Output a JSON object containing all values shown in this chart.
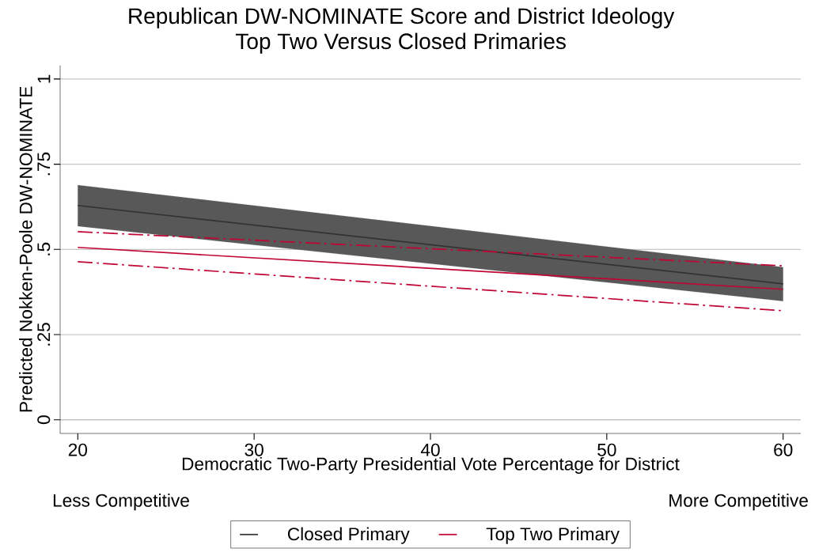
{
  "chart_data": {
    "type": "line",
    "title": "Republican DW-NOMINATE Score and District Ideology",
    "subtitle": "Top Two Versus Closed Primaries",
    "xlabel": "Democratic Two-Party Presidential Vote Percentage for District",
    "ylabel": "Predicted Nokken-Poole DW-NOMINATE",
    "annotations": [
      "Less Competitive",
      "More Competitive"
    ],
    "x": [
      20,
      60
    ],
    "xlim": [
      19,
      61
    ],
    "ylim": [
      -0.04,
      1.04
    ],
    "xticks": [
      20,
      30,
      40,
      50,
      60
    ],
    "yticks": [
      0,
      {
        "value": 0.25,
        "label": ".25"
      },
      {
        "value": 0.5,
        "label": ".5"
      },
      {
        "value": 0.75,
        "label": ".75"
      },
      1
    ],
    "grid": "y",
    "legend": "bottom",
    "series": [
      {
        "name": "Closed Primary",
        "color": "#333333",
        "values": [
          0.629,
          0.399
        ],
        "lower": [
          0.568,
          0.348
        ],
        "upper": [
          0.689,
          0.448
        ]
      },
      {
        "name": "Top Two Primary",
        "color": "#c10534",
        "values": [
          0.506,
          0.383
        ]
      },
      {
        "color": "#c10534",
        "values": [
          0.552,
          0.452
        ],
        "line_style": "dashed"
      },
      {
        "color": "#c10534",
        "values": [
          0.464,
          0.32
        ],
        "line_style": "dashed"
      }
    ]
  }
}
